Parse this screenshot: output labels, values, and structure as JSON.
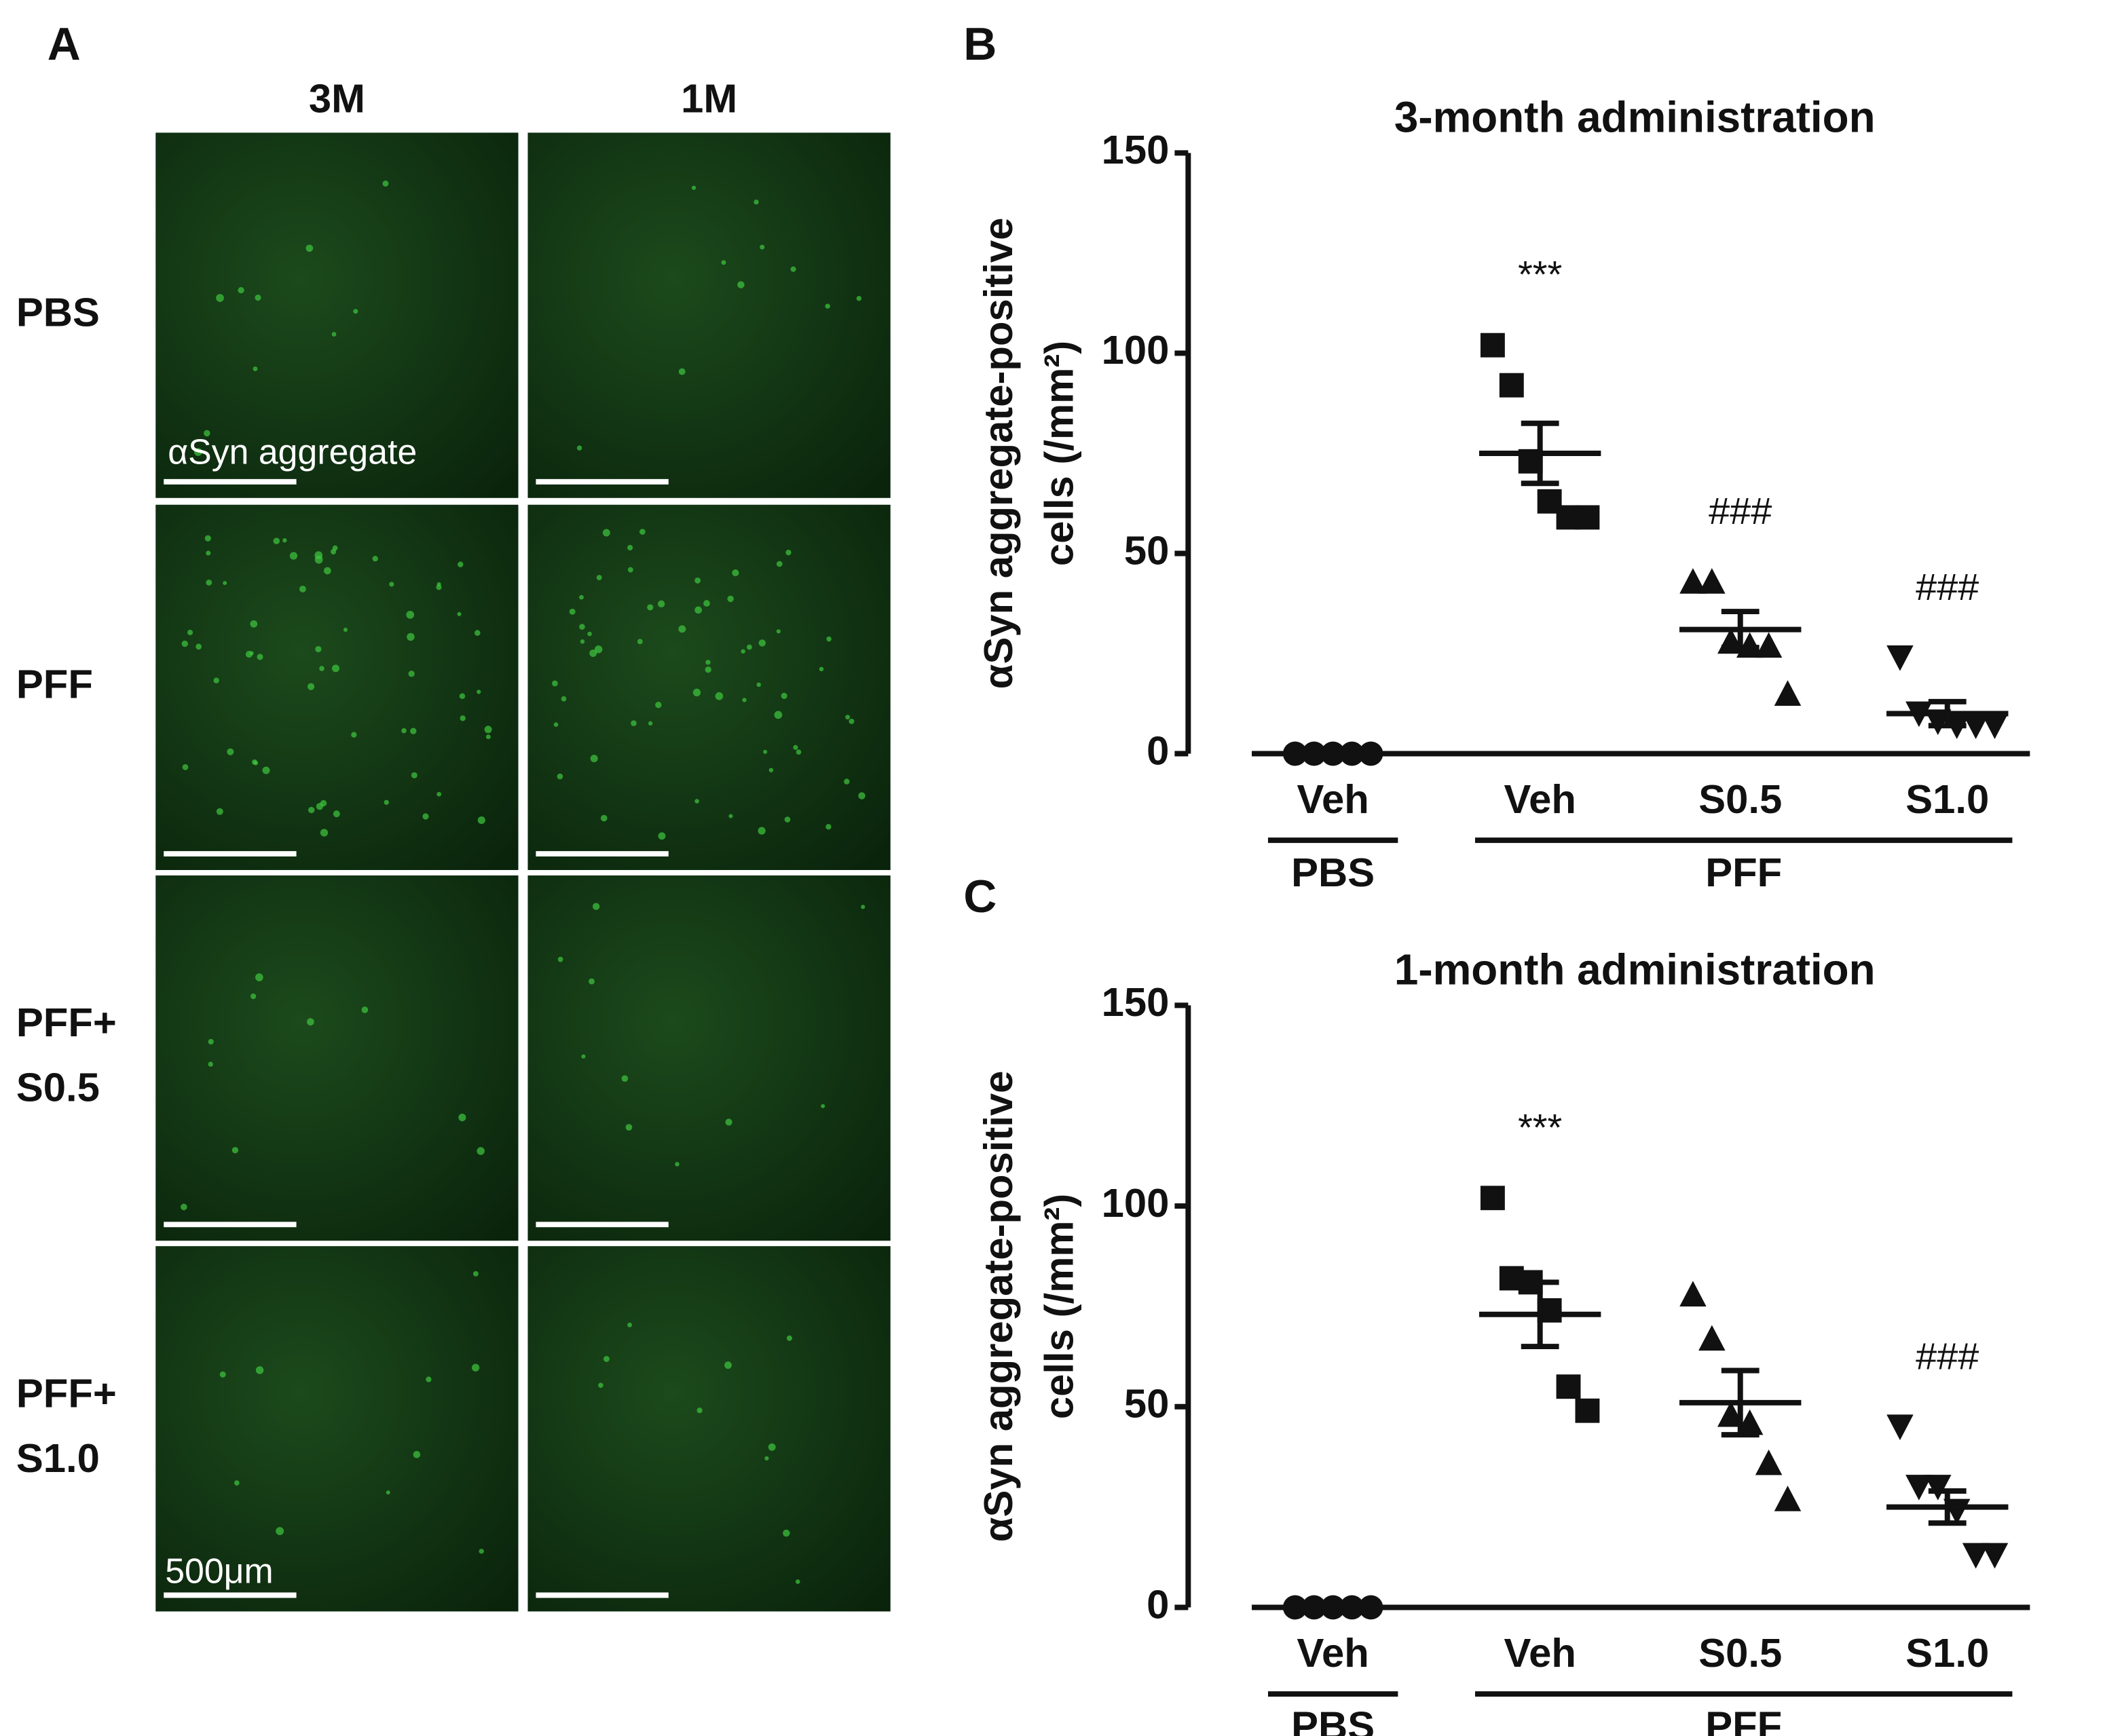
{
  "panel_a": {
    "label": "A",
    "columns": [
      "3M",
      "1M"
    ],
    "rows": [
      [
        "PBS"
      ],
      [
        "PFF"
      ],
      [
        "PFF+",
        "S0.5"
      ],
      [
        "PFF+",
        "S1.0"
      ]
    ],
    "stain_label": "αSyn aggregate",
    "scale_label": "500μm"
  },
  "chart_data": [
    {
      "type": "scatter",
      "panel": "B",
      "title": "3-month administration",
      "ylabel": [
        "αSyn aggregate-positive",
        "cells (/mm²)"
      ],
      "ylim": [
        0,
        150
      ],
      "yticks": [
        0,
        50,
        100,
        150
      ],
      "color": "#111111",
      "groups": [
        {
          "name": "PBS",
          "categories": [
            {
              "name": "Veh",
              "marker": "circle",
              "values": [
                0,
                0,
                0,
                0,
                0
              ],
              "mean": 0,
              "sem": 0
            }
          ]
        },
        {
          "name": "PFF",
          "categories": [
            {
              "name": "Veh",
              "marker": "square",
              "values": [
                102,
                92,
                73,
                63,
                59,
                59
              ],
              "mean": 75,
              "sem": 7.5,
              "annotation": "***"
            },
            {
              "name": "S0.5",
              "marker": "triangle",
              "values": [
                43,
                43,
                28,
                27,
                27,
                15
              ],
              "mean": 31,
              "sem": 4.5,
              "annotation": "###"
            },
            {
              "name": "S1.0",
              "marker": "triangle-down",
              "values": [
                24,
                10,
                8,
                7,
                7,
                7
              ],
              "mean": 10,
              "sem": 3,
              "annotation": "###"
            }
          ]
        }
      ]
    },
    {
      "type": "scatter",
      "panel": "C",
      "title": "1-month administration",
      "ylabel": [
        "αSyn aggregate-positive",
        "cells (/mm²)"
      ],
      "ylim": [
        0,
        150
      ],
      "yticks": [
        0,
        50,
        100,
        150
      ],
      "color": "#111111",
      "groups": [
        {
          "name": "PBS",
          "categories": [
            {
              "name": "Veh",
              "marker": "circle",
              "values": [
                0,
                0,
                0,
                0,
                0
              ],
              "mean": 0,
              "sem": 0
            }
          ]
        },
        {
          "name": "PFF",
          "categories": [
            {
              "name": "Veh",
              "marker": "square",
              "values": [
                102,
                82,
                81,
                74,
                55,
                49
              ],
              "mean": 73,
              "sem": 8,
              "annotation": "***"
            },
            {
              "name": "S0.5",
              "marker": "triangle",
              "values": [
                78,
                67,
                48,
                46,
                36,
                27
              ],
              "mean": 51,
              "sem": 8
            },
            {
              "name": "S1.0",
              "marker": "triangle-down",
              "values": [
                45,
                30,
                30,
                24,
                13,
                13
              ],
              "mean": 25,
              "sem": 4,
              "annotation": "###"
            }
          ]
        }
      ]
    }
  ]
}
